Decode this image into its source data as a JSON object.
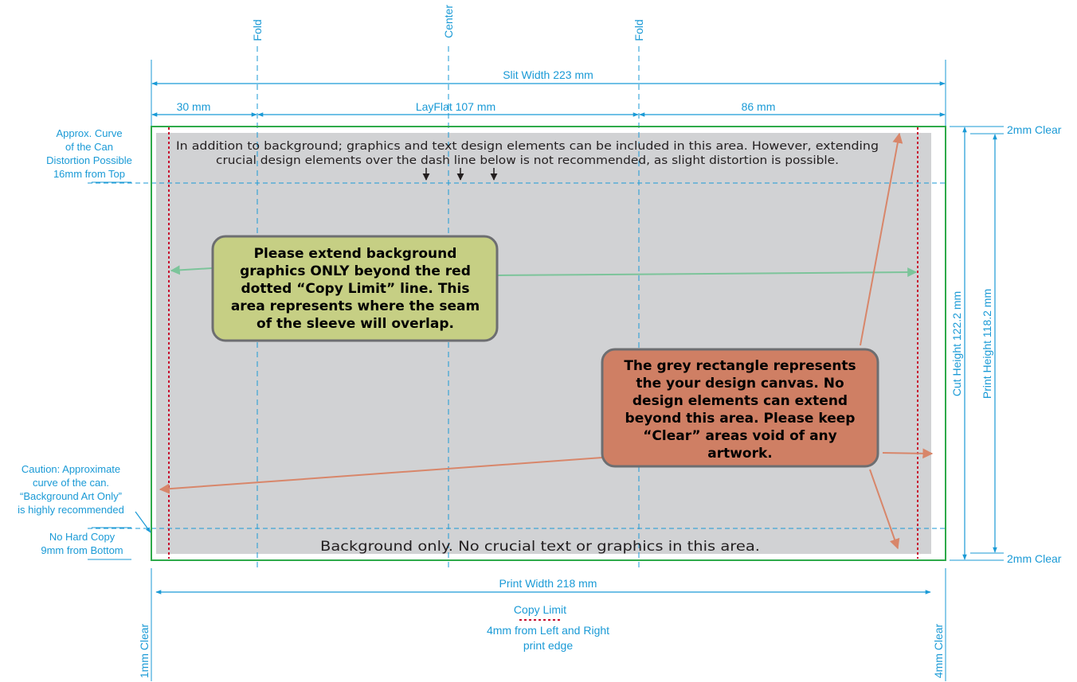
{
  "labels": {
    "fold_left": "Fold",
    "center": "Center",
    "fold_right": "Fold",
    "slit_width": "Slit Width 223 mm",
    "width_30": "30 mm",
    "layflat": "LayFlat 107 mm",
    "width_86": "86 mm",
    "clear_top": "2mm Clear",
    "clear_bottom": "2mm Clear",
    "cut_height": "Cut Height 122.2 mm",
    "print_height": "Print Height 118.2 mm",
    "print_width": "Print Width 218 mm",
    "copy_limit": "Copy Limit",
    "copy_limit_desc": [
      "4mm from Left and Right",
      "print edge"
    ],
    "clear_left_vertical": "1mm Clear",
    "clear_right_vertical": "4mm Clear"
  },
  "notes": {
    "curve_top": [
      "Approx. Curve",
      "of the Can",
      "Distortion Possible",
      "16mm from Top"
    ],
    "caution": [
      "Caution: Approximate",
      "curve of the can.",
      "“Background Art Only”",
      "is highly recommended"
    ],
    "no_hard_copy": [
      "No Hard Copy",
      "9mm from Bottom"
    ]
  },
  "canvas_text": {
    "top_note": [
      "In addition to background; graphics and text design elements can be included in this area. However, extending",
      "crucial design elements over the dash line below is not recommended, as slight distortion is possible."
    ],
    "bottom_note": "Background only. No crucial text or graphics in this area."
  },
  "callouts": {
    "green": [
      "Please extend background",
      "graphics ONLY beyond the red",
      "dotted “Copy Limit” line.  This",
      "area represents where the seam",
      "of the sleeve will overlap."
    ],
    "orange": [
      "The grey rectangle represents",
      "the your design canvas.  No",
      "design elements can extend",
      "beyond this area.  Please keep",
      "“Clear” areas void of any",
      "artwork."
    ]
  },
  "colors": {
    "dimension_blue": "#1a9ad6",
    "cut_line_green": "#2eaa4a",
    "copy_limit_red": "#c8102e",
    "canvas_grey": "#d1d2d4",
    "green_callout_fill": "#c6cf84",
    "orange_callout_fill": "#cf7f64",
    "callout_border": "#6d6e71",
    "green_arrow": "#7cc49a",
    "orange_arrow": "#d8866a"
  }
}
